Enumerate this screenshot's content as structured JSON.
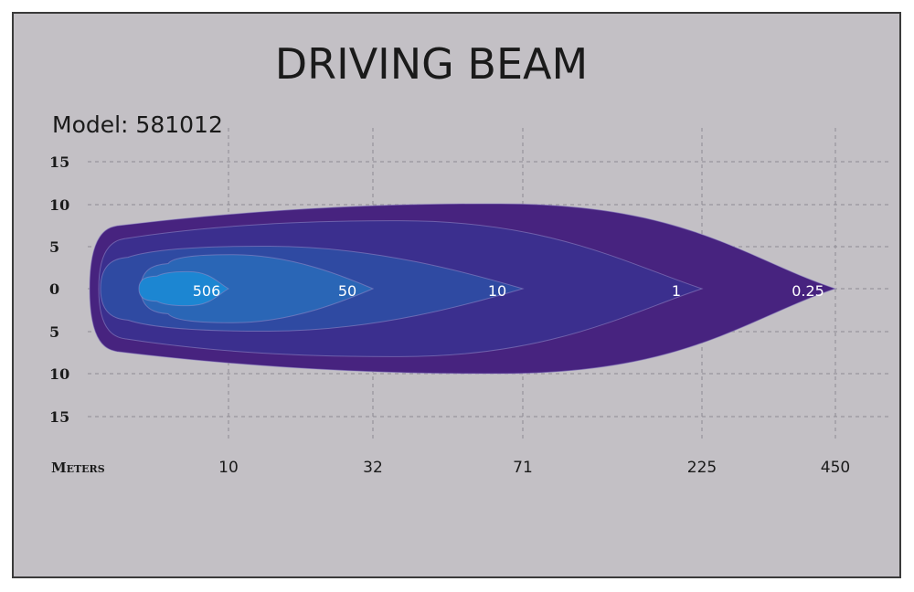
{
  "title": "DRIVING  BEAM",
  "model": "Model: 581012",
  "chart_data": {
    "type": "area",
    "title": "DRIVING  BEAM",
    "xlabel": "Meters",
    "ylabel": "",
    "y_ticks": [
      "15",
      "10",
      "5",
      "0",
      "5",
      "10",
      "15"
    ],
    "x_ticks": [
      "10",
      "32",
      "71",
      "225",
      "450"
    ],
    "grid": true,
    "series": [
      {
        "name": "0.25",
        "reach_tick": "450",
        "half_width": 10,
        "color": "#47237f"
      },
      {
        "name": "1",
        "reach_tick": "225",
        "half_width": 8,
        "color": "#3b2f8e"
      },
      {
        "name": "10",
        "reach_tick": "71",
        "half_width": 5,
        "color": "#2f4aa2"
      },
      {
        "name": "50",
        "reach_tick": "32",
        "half_width": 4,
        "color": "#2a66b6"
      },
      {
        "name": "506",
        "reach_tick": "10",
        "half_width": 2,
        "color": "#1c86d2"
      }
    ]
  }
}
